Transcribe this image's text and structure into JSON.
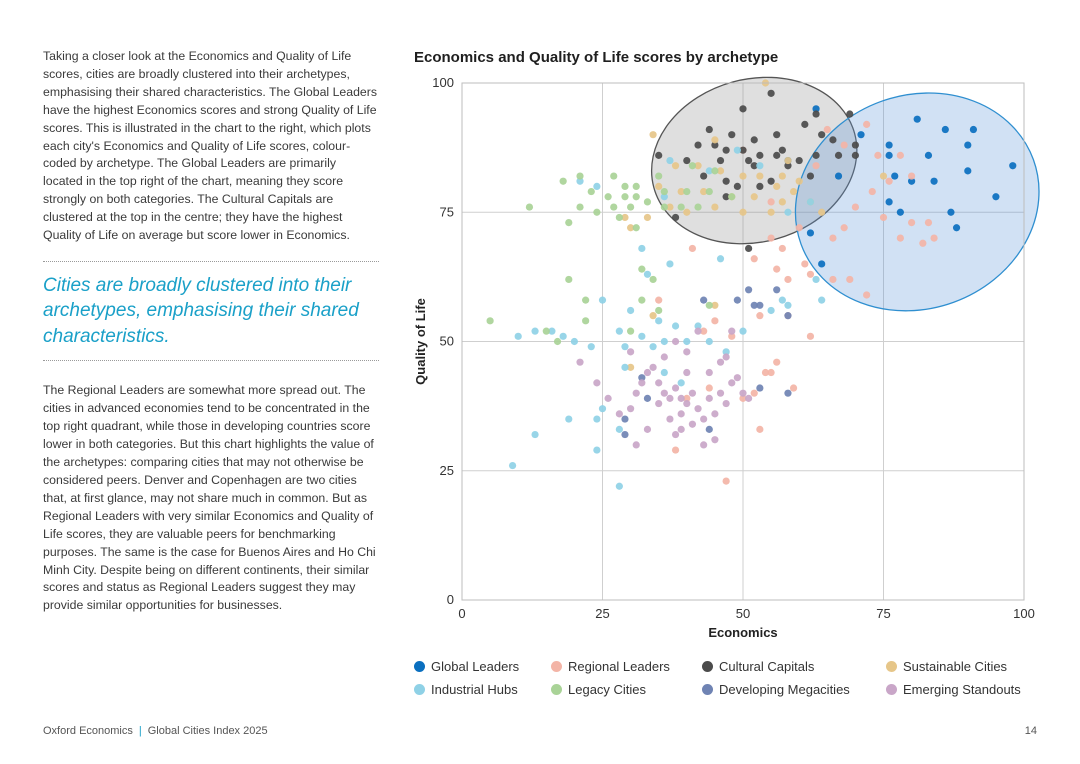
{
  "article": {
    "paragraph1": "Taking a closer look at the Economics and Quality of Life scores, cities are broadly clustered into their archetypes, emphasising their shared characteristics. The Global Leaders have the highest Economics scores and strong Quality of Life scores. This is illustrated in the chart to the right, which plots each city's Economics and Quality of Life scores, colour-coded by archetype. The Global Leaders are primarily located in the top right of the chart, meaning they score strongly on both categories. The Cultural Capitals are clustered at the top in the centre; they have the highest Quality of Life on average but score lower in Economics.",
    "pull_quote": "Cities are broadly clustered into their archetypes, emphasising their shared characteristics.",
    "paragraph2": "The Regional Leaders are somewhat more spread out. The cities in advanced economies tend to be concentrated in the top right quadrant, while those in developing countries score lower in both categories. But this chart highlights the value of the archetypes: comparing cities that may not otherwise be considered peers. Denver and Copenhagen are two cities that, at first glance, may not share much in common. But as Regional Leaders with very similar Economics and Quality of Life scores, they are valuable peers for benchmarking purposes. The same is the case for Buenos Aires and Ho Chi Minh City. Despite being on different continents, their similar scores and status as Regional Leaders suggest they may provide similar opportunities for businesses."
  },
  "footer": {
    "publisher": "Oxford Economics",
    "report": "Global Cities Index 2025",
    "page": "14"
  },
  "chart_data": {
    "type": "scatter",
    "title": "Economics and Quality of Life scores by archetype",
    "xlabel": "Economics",
    "ylabel": "Quality of Life",
    "xlim": [
      0,
      100
    ],
    "ylim": [
      0,
      100
    ],
    "xticks": [
      0,
      25,
      50,
      75,
      100
    ],
    "yticks": [
      0,
      25,
      50,
      75,
      100
    ],
    "grid": true,
    "legend_position": "bottom",
    "ellipses": [
      {
        "series": "Cultural Capitals",
        "cx": 52,
        "cy": 85,
        "rx": 18.5,
        "ry": 14.5,
        "rotation_deg": 15,
        "fill": "#8c8c8c",
        "stroke": "#555555"
      },
      {
        "series": "Global Leaders",
        "cx": 81,
        "cy": 77,
        "rx": 22,
        "ry": 19,
        "rotation_deg": 20,
        "fill": "#5b95d6",
        "stroke": "#2f8fd0"
      }
    ],
    "series": [
      {
        "name": "Global Leaders",
        "color": "#0a6fbf",
        "points": [
          [
            63,
            95
          ],
          [
            71,
            90
          ],
          [
            76,
            88
          ],
          [
            81,
            93
          ],
          [
            86,
            91
          ],
          [
            91,
            91
          ],
          [
            76,
            86
          ],
          [
            83,
            86
          ],
          [
            90,
            88
          ],
          [
            98,
            84
          ],
          [
            58,
            85
          ],
          [
            67,
            82
          ],
          [
            77,
            82
          ],
          [
            80,
            81
          ],
          [
            84,
            81
          ],
          [
            90,
            83
          ],
          [
            95,
            78
          ],
          [
            76,
            77
          ],
          [
            87,
            75
          ],
          [
            88,
            72
          ],
          [
            62,
            71
          ],
          [
            78,
            75
          ],
          [
            64,
            65
          ]
        ]
      },
      {
        "name": "Regional Leaders",
        "color": "#f3b4a6",
        "points": [
          [
            65,
            91
          ],
          [
            72,
            92
          ],
          [
            68,
            88
          ],
          [
            74,
            86
          ],
          [
            78,
            86
          ],
          [
            80,
            82
          ],
          [
            76,
            81
          ],
          [
            73,
            79
          ],
          [
            70,
            76
          ],
          [
            75,
            74
          ],
          [
            80,
            73
          ],
          [
            83,
            73
          ],
          [
            84,
            70
          ],
          [
            78,
            70
          ],
          [
            82,
            69
          ],
          [
            66,
            70
          ],
          [
            68,
            72
          ],
          [
            60,
            72
          ],
          [
            55,
            70
          ],
          [
            57,
            68
          ],
          [
            61,
            65
          ],
          [
            52,
            66
          ],
          [
            56,
            64
          ],
          [
            58,
            62
          ],
          [
            62,
            63
          ],
          [
            66,
            62
          ],
          [
            69,
            62
          ],
          [
            72,
            59
          ],
          [
            53,
            55
          ],
          [
            58,
            55
          ],
          [
            62,
            51
          ],
          [
            45,
            54
          ],
          [
            43,
            52
          ],
          [
            41,
            68
          ],
          [
            48,
            51
          ],
          [
            56,
            46
          ],
          [
            59,
            41
          ],
          [
            54,
            44
          ],
          [
            55,
            44
          ],
          [
            52,
            40
          ],
          [
            44,
            41
          ],
          [
            47,
            23
          ],
          [
            38,
            29
          ],
          [
            53,
            33
          ],
          [
            35,
            58
          ],
          [
            40,
            39
          ],
          [
            50,
            39
          ],
          [
            55,
            77
          ],
          [
            50,
            87
          ],
          [
            63,
            84
          ]
        ]
      },
      {
        "name": "Cultural Capitals",
        "color": "#4b4b4b",
        "points": [
          [
            55,
            98
          ],
          [
            50,
            95
          ],
          [
            63,
            94
          ],
          [
            69,
            94
          ],
          [
            44,
            91
          ],
          [
            48,
            90
          ],
          [
            52,
            89
          ],
          [
            56,
            90
          ],
          [
            61,
            92
          ],
          [
            64,
            90
          ],
          [
            66,
            89
          ],
          [
            70,
            88
          ],
          [
            42,
            88
          ],
          [
            45,
            88
          ],
          [
            47,
            87
          ],
          [
            50,
            87
          ],
          [
            53,
            86
          ],
          [
            57,
            87
          ],
          [
            60,
            85
          ],
          [
            63,
            86
          ],
          [
            67,
            86
          ],
          [
            70,
            86
          ],
          [
            35,
            86
          ],
          [
            40,
            85
          ],
          [
            46,
            85
          ],
          [
            51,
            85
          ],
          [
            58,
            84
          ],
          [
            62,
            82
          ],
          [
            43,
            82
          ],
          [
            47,
            81
          ],
          [
            49,
            80
          ],
          [
            53,
            80
          ],
          [
            55,
            81
          ],
          [
            38,
            74
          ],
          [
            51,
            68
          ],
          [
            56,
            86
          ],
          [
            47,
            78
          ],
          [
            52,
            84
          ]
        ]
      },
      {
        "name": "Sustainable Cities",
        "color": "#e6c689",
        "points": [
          [
            54,
            100
          ],
          [
            34,
            90
          ],
          [
            45,
            89
          ],
          [
            58,
            85
          ],
          [
            38,
            84
          ],
          [
            42,
            84
          ],
          [
            46,
            83
          ],
          [
            50,
            82
          ],
          [
            53,
            82
          ],
          [
            57,
            82
          ],
          [
            60,
            81
          ],
          [
            35,
            80
          ],
          [
            39,
            79
          ],
          [
            43,
            79
          ],
          [
            48,
            78
          ],
          [
            52,
            78
          ],
          [
            57,
            77
          ],
          [
            62,
            77
          ],
          [
            45,
            76
          ],
          [
            50,
            75
          ],
          [
            55,
            75
          ],
          [
            64,
            75
          ],
          [
            29,
            74
          ],
          [
            33,
            74
          ],
          [
            37,
            76
          ],
          [
            40,
            75
          ],
          [
            30,
            72
          ],
          [
            75,
            82
          ],
          [
            45,
            57
          ],
          [
            34,
            55
          ],
          [
            30,
            45
          ],
          [
            56,
            80
          ],
          [
            59,
            79
          ]
        ]
      },
      {
        "name": "Industrial Hubs",
        "color": "#8fd1e6",
        "points": [
          [
            21,
            81
          ],
          [
            24,
            80
          ],
          [
            37,
            85
          ],
          [
            49,
            87
          ],
          [
            44,
            83
          ],
          [
            53,
            84
          ],
          [
            62,
            77
          ],
          [
            58,
            75
          ],
          [
            36,
            78
          ],
          [
            32,
            68
          ],
          [
            33,
            63
          ],
          [
            37,
            65
          ],
          [
            46,
            66
          ],
          [
            25,
            58
          ],
          [
            30,
            56
          ],
          [
            35,
            54
          ],
          [
            38,
            53
          ],
          [
            42,
            53
          ],
          [
            28,
            52
          ],
          [
            32,
            51
          ],
          [
            36,
            50
          ],
          [
            40,
            50
          ],
          [
            44,
            50
          ],
          [
            50,
            52
          ],
          [
            20,
            50
          ],
          [
            10,
            51
          ],
          [
            13,
            52
          ],
          [
            16,
            52
          ],
          [
            18,
            51
          ],
          [
            23,
            49
          ],
          [
            29,
            49
          ],
          [
            34,
            49
          ],
          [
            47,
            48
          ],
          [
            55,
            56
          ],
          [
            58,
            57
          ],
          [
            57,
            58
          ],
          [
            64,
            58
          ],
          [
            63,
            62
          ],
          [
            29,
            45
          ],
          [
            36,
            44
          ],
          [
            39,
            42
          ],
          [
            25,
            37
          ],
          [
            24,
            35
          ],
          [
            19,
            35
          ],
          [
            13,
            32
          ],
          [
            9,
            26
          ],
          [
            24,
            29
          ],
          [
            28,
            22
          ],
          [
            28,
            33
          ]
        ]
      },
      {
        "name": "Legacy Cities",
        "color": "#a9d397",
        "points": [
          [
            21,
            82
          ],
          [
            27,
            82
          ],
          [
            29,
            80
          ],
          [
            31,
            80
          ],
          [
            35,
            82
          ],
          [
            41,
            84
          ],
          [
            45,
            83
          ],
          [
            18,
            81
          ],
          [
            23,
            79
          ],
          [
            26,
            78
          ],
          [
            29,
            78
          ],
          [
            31,
            78
          ],
          [
            36,
            79
          ],
          [
            40,
            79
          ],
          [
            44,
            79
          ],
          [
            48,
            78
          ],
          [
            21,
            76
          ],
          [
            24,
            75
          ],
          [
            27,
            76
          ],
          [
            30,
            76
          ],
          [
            33,
            77
          ],
          [
            36,
            76
          ],
          [
            39,
            76
          ],
          [
            42,
            76
          ],
          [
            12,
            76
          ],
          [
            19,
            73
          ],
          [
            28,
            74
          ],
          [
            31,
            72
          ],
          [
            32,
            64
          ],
          [
            34,
            62
          ],
          [
            19,
            62
          ],
          [
            22,
            58
          ],
          [
            5,
            54
          ],
          [
            15,
            52
          ],
          [
            17,
            50
          ],
          [
            30,
            52
          ],
          [
            32,
            58
          ],
          [
            35,
            56
          ],
          [
            22,
            54
          ],
          [
            44,
            57
          ]
        ]
      },
      {
        "name": "Developing Megacities",
        "color": "#6f83b3",
        "points": [
          [
            43,
            58
          ],
          [
            49,
            58
          ],
          [
            51,
            60
          ],
          [
            53,
            57
          ],
          [
            56,
            60
          ],
          [
            52,
            57
          ],
          [
            58,
            55
          ],
          [
            29,
            35
          ],
          [
            32,
            43
          ],
          [
            33,
            39
          ],
          [
            53,
            41
          ],
          [
            58,
            40
          ],
          [
            44,
            33
          ],
          [
            29,
            32
          ]
        ]
      },
      {
        "name": "Emerging Standouts",
        "color": "#c9a6c8",
        "points": [
          [
            21,
            46
          ],
          [
            24,
            42
          ],
          [
            26,
            39
          ],
          [
            28,
            36
          ],
          [
            30,
            37
          ],
          [
            31,
            40
          ],
          [
            32,
            42
          ],
          [
            33,
            44
          ],
          [
            35,
            42
          ],
          [
            36,
            40
          ],
          [
            37,
            39
          ],
          [
            38,
            41
          ],
          [
            39,
            39
          ],
          [
            40,
            38
          ],
          [
            41,
            40
          ],
          [
            42,
            37
          ],
          [
            43,
            35
          ],
          [
            44,
            39
          ],
          [
            45,
            36
          ],
          [
            46,
            40
          ],
          [
            47,
            38
          ],
          [
            48,
            42
          ],
          [
            49,
            43
          ],
          [
            50,
            40
          ],
          [
            51,
            39
          ],
          [
            34,
            45
          ],
          [
            36,
            47
          ],
          [
            38,
            50
          ],
          [
            40,
            48
          ],
          [
            42,
            52
          ],
          [
            44,
            44
          ],
          [
            46,
            46
          ],
          [
            47,
            47
          ],
          [
            35,
            38
          ],
          [
            37,
            35
          ],
          [
            39,
            33
          ],
          [
            41,
            34
          ],
          [
            43,
            30
          ],
          [
            45,
            31
          ],
          [
            33,
            33
          ],
          [
            31,
            30
          ],
          [
            30,
            48
          ],
          [
            48,
            52
          ],
          [
            40,
            44
          ],
          [
            39,
            36
          ],
          [
            38,
            32
          ]
        ]
      }
    ]
  }
}
